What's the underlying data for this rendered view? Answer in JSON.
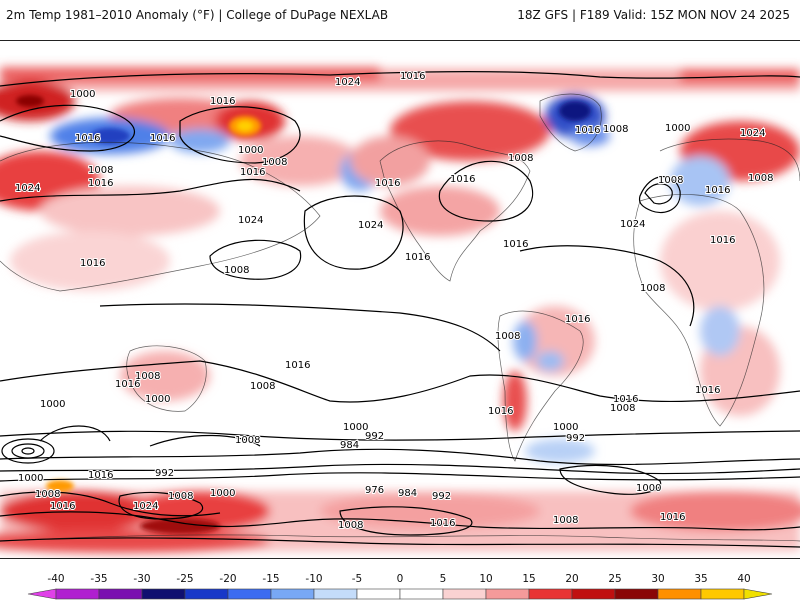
{
  "header": {
    "left_title": "2m Temp 1981–2010 Anomaly (°F) | College of DuPage NEXLAB",
    "right_title": "18Z GFS | F189 Valid: 15Z MON NOV 24 2025"
  },
  "map": {
    "isobar_labels": [
      "1024",
      "1016",
      "1000",
      "1016",
      "1016",
      "1000",
      "1008",
      "1016",
      "1016",
      "1024",
      "1016",
      "1008",
      "1016",
      "1016",
      "1024",
      "1024",
      "1016",
      "1008",
      "1008",
      "1008",
      "1016",
      "1008",
      "1024",
      "1016",
      "1016",
      "1008",
      "1016",
      "1024",
      "1016",
      "1016",
      "1016",
      "1008",
      "1008",
      "1000",
      "1016",
      "1008",
      "1000",
      "992",
      "984",
      "1000",
      "1008",
      "1000",
      "1016",
      "992",
      "1000",
      "1008",
      "976",
      "984",
      "992",
      "1008",
      "1000",
      "1024",
      "1016",
      "1008",
      "1016",
      "1008",
      "1016",
      "1000",
      "992",
      "1016",
      "1016",
      "1008",
      "1000",
      "1008",
      "1016"
    ]
  },
  "colorbar": {
    "ticks": [
      "-40",
      "-35",
      "-30",
      "-25",
      "-20",
      "-15",
      "-10",
      "-5",
      "0",
      "5",
      "10",
      "15",
      "20",
      "25",
      "30",
      "35",
      "40"
    ],
    "colors": [
      "#e040e8",
      "#b020d0",
      "#7a10b0",
      "#101070",
      "#1838c8",
      "#3c6cf0",
      "#78a8f5",
      "#c4dcfa",
      "#ffffff",
      "#ffffff",
      "#fad2d2",
      "#f49a9a",
      "#e83434",
      "#c01010",
      "#8a0606",
      "#ff9000",
      "#ffc800",
      "#f0e000"
    ]
  }
}
